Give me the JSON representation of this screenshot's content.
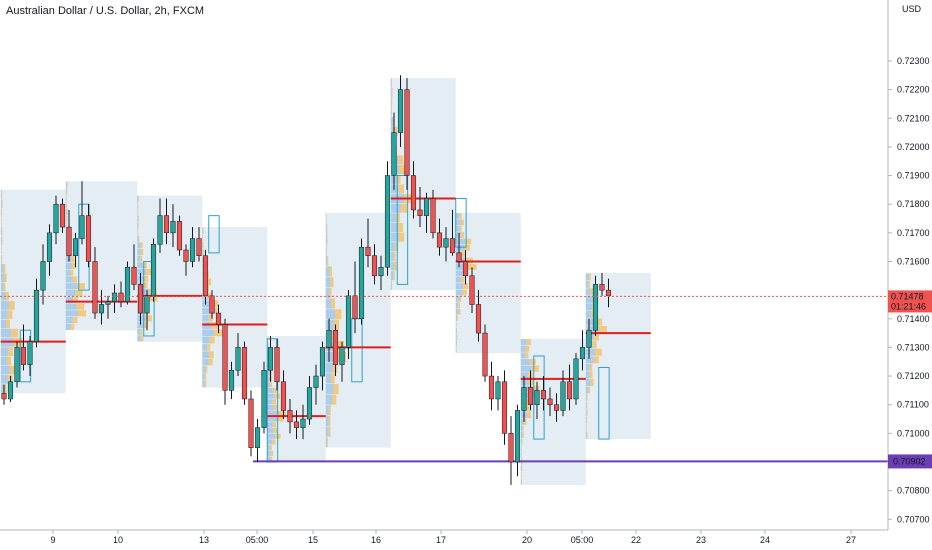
{
  "header": {
    "title": "Australian Dollar / U.S. Dollar, 2h, FXCM",
    "currency": "USD"
  },
  "chart_data": {
    "type": "candlestick",
    "symbol": "Australian Dollar / U.S. Dollar",
    "interval": "2h",
    "source": "FXCM",
    "ylim": [
      0.7068,
      0.7245
    ],
    "y_ticks": [
      "0.72300",
      "0.72200",
      "0.72100",
      "0.72000",
      "0.71900",
      "0.71800",
      "0.71700",
      "0.71600",
      "0.71500",
      "0.71400",
      "0.71300",
      "0.71200",
      "0.71100",
      "0.71000",
      "0.70900",
      "0.70800",
      "0.70700"
    ],
    "x_ticks": [
      "9",
      "10",
      "13",
      "05:00",
      "15",
      "16",
      "17",
      "20",
      "05:00",
      "22",
      "23",
      "24",
      "27"
    ],
    "last_price": "0.71478",
    "countdown": "01:21:46",
    "horizontal_line": "0.70902",
    "colors": {
      "up": "#26a69a",
      "down": "#ef5350",
      "poc": "#e11d1d",
      "hline": "#6b3fb3",
      "profile_box": "#dbe7f0",
      "last_price_bg": "#ef5350",
      "hline_label_bg": "#6b3fb3"
    },
    "candles": [
      [
        0.7114,
        0.7117,
        0.711,
        0.7112
      ],
      [
        0.7112,
        0.712,
        0.7111,
        0.7118
      ],
      [
        0.7118,
        0.7132,
        0.7116,
        0.713
      ],
      [
        0.713,
        0.7138,
        0.7122,
        0.7124
      ],
      [
        0.7124,
        0.7134,
        0.712,
        0.7132
      ],
      [
        0.7132,
        0.7154,
        0.713,
        0.715
      ],
      [
        0.715,
        0.7166,
        0.7145,
        0.716
      ],
      [
        0.716,
        0.7173,
        0.7155,
        0.717
      ],
      [
        0.717,
        0.7183,
        0.7166,
        0.718
      ],
      [
        0.718,
        0.7182,
        0.717,
        0.7172
      ],
      [
        0.7172,
        0.7178,
        0.716,
        0.7162
      ],
      [
        0.7162,
        0.717,
        0.7158,
        0.7168
      ],
      [
        0.7168,
        0.7188,
        0.7166,
        0.7176
      ],
      [
        0.7176,
        0.718,
        0.7158,
        0.716
      ],
      [
        0.716,
        0.7165,
        0.714,
        0.7142
      ],
      [
        0.7142,
        0.715,
        0.7138,
        0.7145
      ],
      [
        0.7145,
        0.7148,
        0.714,
        0.7146
      ],
      [
        0.7146,
        0.7152,
        0.7142,
        0.7149
      ],
      [
        0.7149,
        0.7153,
        0.7144,
        0.7146
      ],
      [
        0.7146,
        0.716,
        0.7145,
        0.7158
      ],
      [
        0.7158,
        0.7166,
        0.715,
        0.7152
      ],
      [
        0.7152,
        0.7156,
        0.7138,
        0.7142
      ],
      [
        0.7142,
        0.715,
        0.7136,
        0.7148
      ],
      [
        0.7148,
        0.7168,
        0.7146,
        0.7166
      ],
      [
        0.7166,
        0.7182,
        0.7163,
        0.7176
      ],
      [
        0.7176,
        0.7182,
        0.7166,
        0.717
      ],
      [
        0.717,
        0.718,
        0.7165,
        0.7174
      ],
      [
        0.7174,
        0.7176,
        0.7162,
        0.7164
      ],
      [
        0.7164,
        0.7166,
        0.7155,
        0.716
      ],
      [
        0.716,
        0.7172,
        0.7158,
        0.7168
      ],
      [
        0.7168,
        0.7172,
        0.716,
        0.7162
      ],
      [
        0.7162,
        0.7164,
        0.7145,
        0.7148
      ],
      [
        0.7148,
        0.715,
        0.714,
        0.7142
      ],
      [
        0.7142,
        0.7145,
        0.7135,
        0.7138
      ],
      [
        0.7138,
        0.714,
        0.711,
        0.7115
      ],
      [
        0.7115,
        0.7125,
        0.7112,
        0.7122
      ],
      [
        0.7122,
        0.7135,
        0.712,
        0.713
      ],
      [
        0.713,
        0.7132,
        0.711,
        0.7112
      ],
      [
        0.7112,
        0.7115,
        0.7092,
        0.7095
      ],
      [
        0.7095,
        0.7105,
        0.709,
        0.7102
      ],
      [
        0.7102,
        0.7125,
        0.71,
        0.7122
      ],
      [
        0.7122,
        0.7134,
        0.7118,
        0.713
      ],
      [
        0.713,
        0.7133,
        0.7115,
        0.7118
      ],
      [
        0.7118,
        0.7122,
        0.7105,
        0.7108
      ],
      [
        0.7108,
        0.7112,
        0.71,
        0.7104
      ],
      [
        0.7104,
        0.7108,
        0.7098,
        0.7102
      ],
      [
        0.7102,
        0.711,
        0.7098,
        0.7105
      ],
      [
        0.7105,
        0.712,
        0.7103,
        0.7116
      ],
      [
        0.7116,
        0.7124,
        0.711,
        0.712
      ],
      [
        0.712,
        0.7132,
        0.7115,
        0.713
      ],
      [
        0.713,
        0.714,
        0.7125,
        0.7136
      ],
      [
        0.7136,
        0.7138,
        0.712,
        0.7124
      ],
      [
        0.7124,
        0.7132,
        0.7118,
        0.713
      ],
      [
        0.713,
        0.715,
        0.7126,
        0.7148
      ],
      [
        0.7148,
        0.716,
        0.7135,
        0.714
      ],
      [
        0.714,
        0.7168,
        0.7138,
        0.7165
      ],
      [
        0.7165,
        0.7175,
        0.7158,
        0.7162
      ],
      [
        0.7162,
        0.7166,
        0.7152,
        0.7155
      ],
      [
        0.7155,
        0.7162,
        0.715,
        0.7158
      ],
      [
        0.7158,
        0.7195,
        0.7155,
        0.719
      ],
      [
        0.719,
        0.7212,
        0.7185,
        0.7205
      ],
      [
        0.7205,
        0.7225,
        0.72,
        0.722
      ],
      [
        0.722,
        0.7224,
        0.7185,
        0.719
      ],
      [
        0.719,
        0.7195,
        0.7175,
        0.7178
      ],
      [
        0.7178,
        0.7186,
        0.7172,
        0.7176
      ],
      [
        0.7176,
        0.7184,
        0.717,
        0.7182
      ],
      [
        0.7182,
        0.7185,
        0.7168,
        0.717
      ],
      [
        0.717,
        0.7175,
        0.7162,
        0.7165
      ],
      [
        0.7165,
        0.7172,
        0.716,
        0.7168
      ],
      [
        0.7168,
        0.7178,
        0.7162,
        0.7163
      ],
      [
        0.7163,
        0.717,
        0.7158,
        0.716
      ],
      [
        0.716,
        0.7164,
        0.7152,
        0.7155
      ],
      [
        0.7155,
        0.7158,
        0.7142,
        0.7145
      ],
      [
        0.7145,
        0.715,
        0.7132,
        0.7135
      ],
      [
        0.7135,
        0.7138,
        0.7118,
        0.712
      ],
      [
        0.712,
        0.7125,
        0.7108,
        0.7112
      ],
      [
        0.7112,
        0.712,
        0.7108,
        0.7118
      ],
      [
        0.7118,
        0.7122,
        0.7096,
        0.71
      ],
      [
        0.71,
        0.7106,
        0.7082,
        0.709
      ],
      [
        0.709,
        0.711,
        0.7085,
        0.7108
      ],
      [
        0.7108,
        0.712,
        0.7104,
        0.7116
      ],
      [
        0.7116,
        0.7122,
        0.7108,
        0.711
      ],
      [
        0.711,
        0.7118,
        0.7105,
        0.7115
      ],
      [
        0.7115,
        0.712,
        0.7108,
        0.7112
      ],
      [
        0.7112,
        0.7116,
        0.7106,
        0.711
      ],
      [
        0.711,
        0.7114,
        0.7104,
        0.7108
      ],
      [
        0.7108,
        0.7122,
        0.7106,
        0.7118
      ],
      [
        0.7118,
        0.7124,
        0.7108,
        0.7112
      ],
      [
        0.7112,
        0.7128,
        0.711,
        0.7126
      ],
      [
        0.7126,
        0.7136,
        0.7122,
        0.713
      ],
      [
        0.713,
        0.714,
        0.7126,
        0.7136
      ],
      [
        0.7136,
        0.7155,
        0.7134,
        0.7152
      ],
      [
        0.7152,
        0.7156,
        0.7148,
        0.715
      ],
      [
        0.715,
        0.7154,
        0.7144,
        0.7148
      ]
    ],
    "profiles": [
      {
        "start": 0,
        "end": 9,
        "lo": 0.7114,
        "hi": 0.7185,
        "poc": 0.7132
      },
      {
        "start": 10,
        "end": 20,
        "lo": 0.7136,
        "hi": 0.7188,
        "poc": 0.7146
      },
      {
        "start": 21,
        "end": 30,
        "lo": 0.7132,
        "hi": 0.7183,
        "poc": 0.7148
      },
      {
        "start": 31,
        "end": 40,
        "lo": 0.7116,
        "hi": 0.7172,
        "poc": 0.7138
      },
      {
        "start": 41,
        "end": 49,
        "lo": 0.709,
        "hi": 0.7134,
        "poc": 0.7106
      },
      {
        "start": 50,
        "end": 59,
        "lo": 0.7095,
        "hi": 0.7177,
        "poc": 0.713
      },
      {
        "start": 60,
        "end": 69,
        "lo": 0.715,
        "hi": 0.7224,
        "poc": 0.7182
      },
      {
        "start": 70,
        "end": 79,
        "lo": 0.7128,
        "hi": 0.7177,
        "poc": 0.716
      },
      {
        "start": 80,
        "end": 89,
        "lo": 0.7082,
        "hi": 0.7133,
        "poc": 0.7119
      },
      {
        "start": 90,
        "end": 99,
        "lo": 0.7098,
        "hi": 0.7156,
        "poc": 0.7135
      }
    ],
    "grid": false,
    "legend": "none"
  }
}
